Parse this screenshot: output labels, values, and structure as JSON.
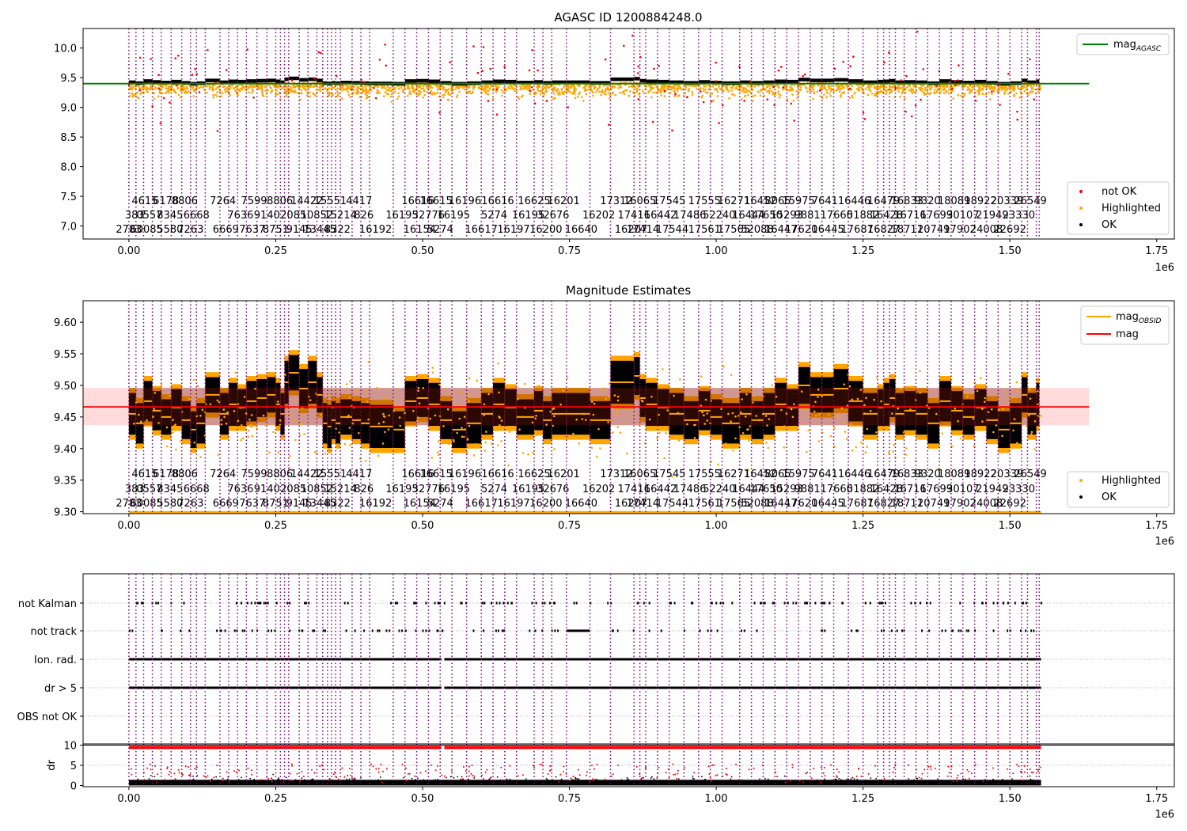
{
  "chart_data": [
    {
      "type": "scatter",
      "title": "AGASC ID 1200884248.0",
      "xlabel": "",
      "ylabel": "",
      "x_offset_label": "1e6",
      "xlim": [
        -0.078,
        1.78
      ],
      "ylim": [
        6.78,
        10.33
      ],
      "x_ticks": [
        0.0,
        0.25,
        0.5,
        0.75,
        1.0,
        1.25,
        1.5,
        1.75
      ],
      "x_tick_labels": [
        "0.00",
        "0.25",
        "0.50",
        "0.75",
        "1.00",
        "1.25",
        "1.50",
        "1.75"
      ],
      "y_ticks": [
        7.0,
        7.5,
        8.0,
        8.5,
        9.0,
        9.5,
        10.0
      ],
      "y_tick_labels": [
        "7.0",
        "7.5",
        "8.0",
        "8.5",
        "9.0",
        "9.5",
        "10.0"
      ],
      "grid": false,
      "legend_upper": {
        "position": "top-right",
        "entries": [
          {
            "label": "mag",
            "sub": "AGASC",
            "color": "#008000"
          }
        ]
      },
      "legend_lower": {
        "position": "bottom-right",
        "entries": [
          {
            "label": "not OK",
            "color": "#ff0000"
          },
          {
            "label": "Highlighted",
            "color": "#ffa500"
          },
          {
            "label": "OK",
            "color": "#000000"
          }
        ]
      },
      "reference_line": {
        "name": "mag_AGASC",
        "y": 9.4,
        "color": "#008000"
      },
      "series": [
        {
          "name": "OK",
          "color": "#000000",
          "level": 9.45,
          "spread": 0.03
        },
        {
          "name": "Highlighted",
          "color": "#ffa500",
          "level": 9.3,
          "spread": 0.25
        },
        {
          "name": "not OK",
          "color": "#ff0000",
          "level": 9.2,
          "spread": 0.9
        }
      ]
    },
    {
      "type": "scatter",
      "title": "Magnitude Estimates",
      "xlabel": "",
      "ylabel": "",
      "x_offset_label": "1e6",
      "xlim": [
        -0.078,
        1.78
      ],
      "ylim": [
        9.297,
        9.634
      ],
      "x_ticks": [
        0.0,
        0.25,
        0.5,
        0.75,
        1.0,
        1.25,
        1.5,
        1.75
      ],
      "x_tick_labels": [
        "0.00",
        "0.25",
        "0.50",
        "0.75",
        "1.00",
        "1.25",
        "1.50",
        "1.75"
      ],
      "y_ticks": [
        9.3,
        9.35,
        9.4,
        9.45,
        9.5,
        9.55,
        9.6
      ],
      "y_tick_labels": [
        "9.30",
        "9.35",
        "9.40",
        "9.45",
        "9.50",
        "9.55",
        "9.60"
      ],
      "grid": false,
      "legend_upper": {
        "position": "top-right",
        "entries": [
          {
            "label": "mag",
            "sub": "OBSID",
            "color": "#ffa500"
          },
          {
            "label": "mag",
            "sub": "",
            "color": "#ff0000"
          }
        ]
      },
      "legend_lower": {
        "position": "bottom-right",
        "entries": [
          {
            "label": "Highlighted",
            "color": "#ffa500"
          },
          {
            "label": "OK",
            "color": "#000000"
          }
        ]
      },
      "mean_line": {
        "name": "mag",
        "y": 9.466,
        "band": [
          9.437,
          9.496
        ],
        "color": "#ff0000"
      },
      "obsid_mag": [
        9.455,
        9.44,
        9.475,
        9.46,
        9.45,
        9.465,
        9.445,
        9.43,
        9.44,
        9.485,
        9.455,
        9.47,
        9.465,
        9.475,
        9.48,
        9.485,
        9.47,
        9.455,
        9.505,
        9.52,
        9.495,
        9.505,
        9.485,
        9.44,
        9.435,
        9.445,
        9.44,
        9.45,
        9.445,
        9.44,
        9.435,
        9.43,
        9.475,
        9.48,
        9.47,
        9.445,
        9.43,
        9.44,
        9.455,
        9.47,
        9.465,
        9.45,
        9.46,
        9.445,
        9.455,
        9.455,
        9.445,
        9.505,
        9.515,
        9.48,
        9.47,
        9.465,
        9.455,
        9.445,
        9.46,
        9.45,
        9.44,
        9.455,
        9.445,
        9.455,
        9.47,
        9.465,
        9.5,
        9.485,
        9.485,
        9.495,
        9.475,
        9.455,
        9.465,
        9.47,
        9.48,
        9.455,
        9.46
      ]
    },
    {
      "type": "scatter",
      "title": "",
      "xlabel": "",
      "ylabel": "",
      "x_offset_label": "1e6",
      "xlim": [
        -0.078,
        1.78
      ],
      "x_ticks": [
        0.0,
        0.25,
        0.5,
        0.75,
        1.0,
        1.25,
        1.5,
        1.75
      ],
      "x_tick_labels": [
        "0.00",
        "0.25",
        "0.50",
        "0.75",
        "1.00",
        "1.25",
        "1.50",
        "1.75"
      ],
      "flag_rows": [
        "not Kalman",
        "not track",
        "Ion. rad.",
        "dr > 5",
        "OBS not OK"
      ],
      "grid": true
    },
    {
      "type": "scatter",
      "title": "",
      "xlabel": "",
      "ylabel": "dr",
      "x_offset_label": "1e6",
      "xlim": [
        -0.078,
        1.78
      ],
      "ylim": [
        -0.3,
        10.3
      ],
      "x_ticks": [
        0.0,
        0.25,
        0.5,
        0.75,
        1.0,
        1.25,
        1.5,
        1.75
      ],
      "x_tick_labels": [
        "0.00",
        "0.25",
        "0.50",
        "0.75",
        "1.00",
        "1.25",
        "1.50",
        "1.75"
      ],
      "y_ticks": [
        0,
        5,
        10
      ],
      "y_tick_labels": [
        "0",
        "5",
        "10"
      ],
      "grid": true
    }
  ],
  "obsid_labels": {
    "row1": [
      {
        "x": 0.027,
        "t": "4615"
      },
      {
        "x": 0.063,
        "t": "6178"
      },
      {
        "x": 0.095,
        "t": "8806"
      },
      {
        "x": 0.16,
        "t": "7264"
      },
      {
        "x": 0.213,
        "t": "7599"
      },
      {
        "x": 0.257,
        "t": "8806"
      },
      {
        "x": 0.303,
        "t": "14422"
      },
      {
        "x": 0.343,
        "t": "15551"
      },
      {
        "x": 0.392,
        "t": "4417"
      },
      {
        "x": 0.492,
        "t": "16616"
      },
      {
        "x": 0.523,
        "t": "16615"
      },
      {
        "x": 0.572,
        "t": "16196"
      },
      {
        "x": 0.628,
        "t": "16616"
      },
      {
        "x": 0.69,
        "t": "16625"
      },
      {
        "x": 0.74,
        "t": "16201"
      },
      {
        "x": 0.83,
        "t": "17312"
      },
      {
        "x": 0.87,
        "t": "16065"
      },
      {
        "x": 0.92,
        "t": "17545"
      },
      {
        "x": 0.98,
        "t": "17555"
      },
      {
        "x": 1.03,
        "t": "16271"
      },
      {
        "x": 1.075,
        "t": "16452"
      },
      {
        "x": 1.105,
        "t": "8065"
      },
      {
        "x": 1.14,
        "t": "15975"
      },
      {
        "x": 1.185,
        "t": "7641"
      },
      {
        "x": 1.235,
        "t": "16446"
      },
      {
        "x": 1.285,
        "t": "16479"
      },
      {
        "x": 1.325,
        "t": "16833"
      },
      {
        "x": 1.36,
        "t": "9320"
      },
      {
        "x": 1.405,
        "t": "18089"
      },
      {
        "x": 1.45,
        "t": "18922"
      },
      {
        "x": 1.495,
        "t": "20339"
      },
      {
        "x": 1.535,
        "t": "26549"
      }
    ],
    "row2": [
      {
        "x": 0.01,
        "t": "383"
      },
      {
        "x": 0.035,
        "t": "0557"
      },
      {
        "x": 0.07,
        "t": "8345"
      },
      {
        "x": 0.115,
        "t": "6668"
      },
      {
        "x": 0.19,
        "t": "7636"
      },
      {
        "x": 0.235,
        "t": "9140"
      },
      {
        "x": 0.28,
        "t": "2085"
      },
      {
        "x": 0.32,
        "t": "10852"
      },
      {
        "x": 0.36,
        "t": "15214"
      },
      {
        "x": 0.4,
        "t": "826"
      },
      {
        "x": 0.465,
        "t": "16195"
      },
      {
        "x": 0.51,
        "t": "32776"
      },
      {
        "x": 0.553,
        "t": "16195"
      },
      {
        "x": 0.622,
        "t": "5274"
      },
      {
        "x": 0.68,
        "t": "16195"
      },
      {
        "x": 0.722,
        "t": "32676"
      },
      {
        "x": 0.8,
        "t": "16202"
      },
      {
        "x": 0.86,
        "t": "17416"
      },
      {
        "x": 0.905,
        "t": "16442"
      },
      {
        "x": 0.955,
        "t": "17486"
      },
      {
        "x": 1.005,
        "t": "52240"
      },
      {
        "x": 1.055,
        "t": "16444"
      },
      {
        "x": 1.085,
        "t": "17650"
      },
      {
        "x": 1.12,
        "t": "15293"
      },
      {
        "x": 1.155,
        "t": "9881"
      },
      {
        "x": 1.205,
        "t": "17660"
      },
      {
        "x": 1.25,
        "t": "51882"
      },
      {
        "x": 1.29,
        "t": "16428"
      },
      {
        "x": 1.33,
        "t": "16716"
      },
      {
        "x": 1.375,
        "t": "17699"
      },
      {
        "x": 1.42,
        "t": "30107"
      },
      {
        "x": 1.47,
        "t": "21949"
      },
      {
        "x": 1.515,
        "t": "23330"
      }
    ],
    "row3": [
      {
        "x": 0.0,
        "t": "2783"
      },
      {
        "x": 0.03,
        "t": "60085"
      },
      {
        "x": 0.07,
        "t": "5580"
      },
      {
        "x": 0.105,
        "t": "7263"
      },
      {
        "x": 0.165,
        "t": "6669"
      },
      {
        "x": 0.21,
        "t": "7637"
      },
      {
        "x": 0.25,
        "t": "8751"
      },
      {
        "x": 0.29,
        "t": "9145"
      },
      {
        "x": 0.325,
        "t": "13445"
      },
      {
        "x": 0.355,
        "t": "8322"
      },
      {
        "x": 0.42,
        "t": "16192"
      },
      {
        "x": 0.495,
        "t": "16154"
      },
      {
        "x": 0.53,
        "t": "5274"
      },
      {
        "x": 0.6,
        "t": "16617"
      },
      {
        "x": 0.655,
        "t": "16197"
      },
      {
        "x": 0.71,
        "t": "16200"
      },
      {
        "x": 0.77,
        "t": "16640"
      },
      {
        "x": 0.855,
        "t": "16207"
      },
      {
        "x": 0.875,
        "t": "17414"
      },
      {
        "x": 0.925,
        "t": "17544"
      },
      {
        "x": 0.98,
        "t": "17561"
      },
      {
        "x": 1.03,
        "t": "17565"
      },
      {
        "x": 1.07,
        "t": "52088"
      },
      {
        "x": 1.11,
        "t": "16447"
      },
      {
        "x": 1.145,
        "t": "17620"
      },
      {
        "x": 1.19,
        "t": "16445"
      },
      {
        "x": 1.24,
        "t": "17687"
      },
      {
        "x": 1.285,
        "t": "16827"
      },
      {
        "x": 1.325,
        "t": "18711"
      },
      {
        "x": 1.37,
        "t": "20749"
      },
      {
        "x": 1.415,
        "t": "17902"
      },
      {
        "x": 1.46,
        "t": "24008"
      },
      {
        "x": 1.5,
        "t": "22692"
      }
    ]
  },
  "obsid_boundaries": [
    0.0,
    0.012,
    0.025,
    0.04,
    0.055,
    0.072,
    0.09,
    0.105,
    0.115,
    0.13,
    0.155,
    0.17,
    0.185,
    0.2,
    0.218,
    0.235,
    0.25,
    0.258,
    0.265,
    0.272,
    0.29,
    0.305,
    0.32,
    0.33,
    0.338,
    0.345,
    0.352,
    0.36,
    0.38,
    0.395,
    0.41,
    0.45,
    0.47,
    0.49,
    0.51,
    0.53,
    0.55,
    0.575,
    0.6,
    0.62,
    0.64,
    0.66,
    0.69,
    0.705,
    0.72,
    0.745,
    0.785,
    0.82,
    0.86,
    0.87,
    0.88,
    0.9,
    0.92,
    0.945,
    0.97,
    0.99,
    1.01,
    1.04,
    1.06,
    1.08,
    1.1,
    1.12,
    1.14,
    1.16,
    1.18,
    1.2,
    1.225,
    1.25,
    1.275,
    1.285,
    1.295,
    1.305,
    1.32,
    1.34,
    1.36,
    1.38,
    1.4,
    1.42,
    1.44,
    1.46,
    1.48,
    1.5,
    1.52,
    1.53,
    1.545,
    1.55
  ],
  "data_range": [
    0.0,
    1.553
  ]
}
